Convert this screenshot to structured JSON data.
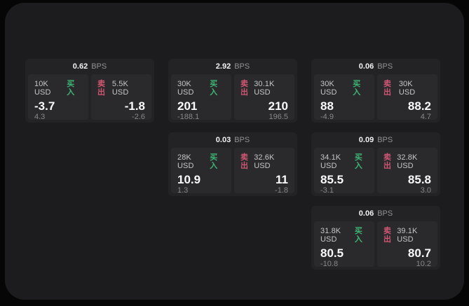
{
  "colors": {
    "page_bg": "#060607",
    "panel_bg": "#1c1c1e",
    "card_bg": "#232325",
    "tile_bg": "#2a2a2c",
    "buy_green": "#3eb575",
    "sell_rose": "#cf5672",
    "value_text": "#fafafa",
    "muted_text": "#87878b"
  },
  "labels": {
    "bps_unit": "BPS",
    "buy": "买入",
    "sell": "卖出"
  },
  "cards": [
    {
      "col": 1,
      "row": 1,
      "bps": "0.62",
      "buy": {
        "amount": "10K USD",
        "price": "-3.7",
        "delta": "4.3"
      },
      "sell": {
        "amount": "5.5K USD",
        "price": "-1.8",
        "delta": "-2.6"
      }
    },
    {
      "col": 2,
      "row": 1,
      "bps": "2.92",
      "buy": {
        "amount": "30K USD",
        "price": "201",
        "delta": "-188.1"
      },
      "sell": {
        "amount": "30.1K USD",
        "price": "210",
        "delta": "196.5"
      }
    },
    {
      "col": 3,
      "row": 1,
      "bps": "0.06",
      "buy": {
        "amount": "30K USD",
        "price": "88",
        "delta": "-4.9"
      },
      "sell": {
        "amount": "30K USD",
        "price": "88.2",
        "delta": "4.7"
      }
    },
    {
      "col": 2,
      "row": 2,
      "bps": "0.03",
      "buy": {
        "amount": "28K USD",
        "price": "10.9",
        "delta": "1.3"
      },
      "sell": {
        "amount": "32.6K USD",
        "price": "11",
        "delta": "-1.8"
      }
    },
    {
      "col": 3,
      "row": 2,
      "bps": "0.09",
      "buy": {
        "amount": "34.1K USD",
        "price": "85.5",
        "delta": "-3.1"
      },
      "sell": {
        "amount": "32.8K USD",
        "price": "85.8",
        "delta": "3.0"
      }
    },
    {
      "col": 3,
      "row": 3,
      "bps": "0.06",
      "buy": {
        "amount": "31.8K USD",
        "price": "80.5",
        "delta": "-10.8"
      },
      "sell": {
        "amount": "39.1K USD",
        "price": "80.7",
        "delta": "10.2"
      }
    }
  ]
}
